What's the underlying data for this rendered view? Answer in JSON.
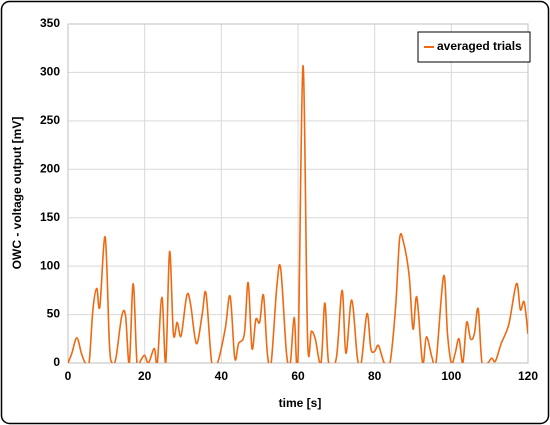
{
  "chart_data": {
    "type": "line",
    "xlabel": "time [s]",
    "ylabel": "OWC - voltage output [mV]",
    "xlim": [
      0,
      120
    ],
    "xticks": [
      0,
      20,
      40,
      60,
      80,
      100,
      120
    ],
    "ylim": [
      0,
      350
    ],
    "yticks": [
      0,
      50,
      100,
      150,
      200,
      250,
      300,
      350
    ],
    "grid": true,
    "legend": "upper right",
    "x": [
      0,
      1,
      2.3,
      3.5,
      4.5,
      5.5,
      6.5,
      7.5,
      8.3,
      9.7,
      10.8,
      11.5,
      12.5,
      14,
      15,
      16,
      17,
      18,
      19,
      20,
      21,
      22.5,
      23.3,
      24.5,
      25.5,
      26.5,
      27.5,
      28.5,
      29.5,
      31,
      32,
      33.5,
      35,
      36,
      37.5,
      39,
      41,
      42.3,
      43.5,
      44.5,
      46,
      47,
      48,
      49,
      50,
      51,
      52,
      53,
      54.5,
      55.5,
      57,
      58,
      59,
      60,
      61.3,
      62.5,
      63.5,
      64.5,
      66,
      67,
      68,
      70,
      71.5,
      72.5,
      74,
      75.5,
      76.5,
      78,
      79,
      80,
      81,
      82.5,
      84,
      85.5,
      86.5,
      87.5,
      89,
      90,
      91,
      92.5,
      93.5,
      95,
      96,
      98,
      99,
      100,
      101,
      102,
      103,
      104,
      105,
      106,
      107,
      108,
      109.5,
      110.5,
      111.5,
      113,
      115,
      117,
      118,
      119,
      120
    ],
    "series": [
      {
        "name": "averaged trials",
        "color": "#ee6a12",
        "values": [
          0,
          10,
          26,
          10,
          0,
          0,
          55,
          77,
          58,
          130,
          20,
          0,
          5,
          48,
          49,
          0,
          82,
          0,
          3,
          8,
          0,
          15,
          0,
          68,
          0,
          115,
          30,
          42,
          28,
          70,
          60,
          20,
          50,
          72,
          0,
          0,
          35,
          69,
          5,
          20,
          30,
          83,
          15,
          45,
          42,
          70,
          10,
          0,
          80,
          97,
          10,
          0,
          47,
          5,
          307,
          25,
          33,
          25,
          0,
          62,
          0,
          5,
          75,
          10,
          65,
          5,
          0,
          51,
          15,
          12,
          18,
          0,
          0,
          60,
          128,
          125,
          90,
          35,
          68,
          0,
          27,
          5,
          0,
          90,
          30,
          0,
          10,
          25,
          0,
          42,
          25,
          30,
          56,
          0,
          0,
          5,
          2,
          20,
          40,
          82,
          55,
          63,
          30
        ]
      }
    ]
  }
}
